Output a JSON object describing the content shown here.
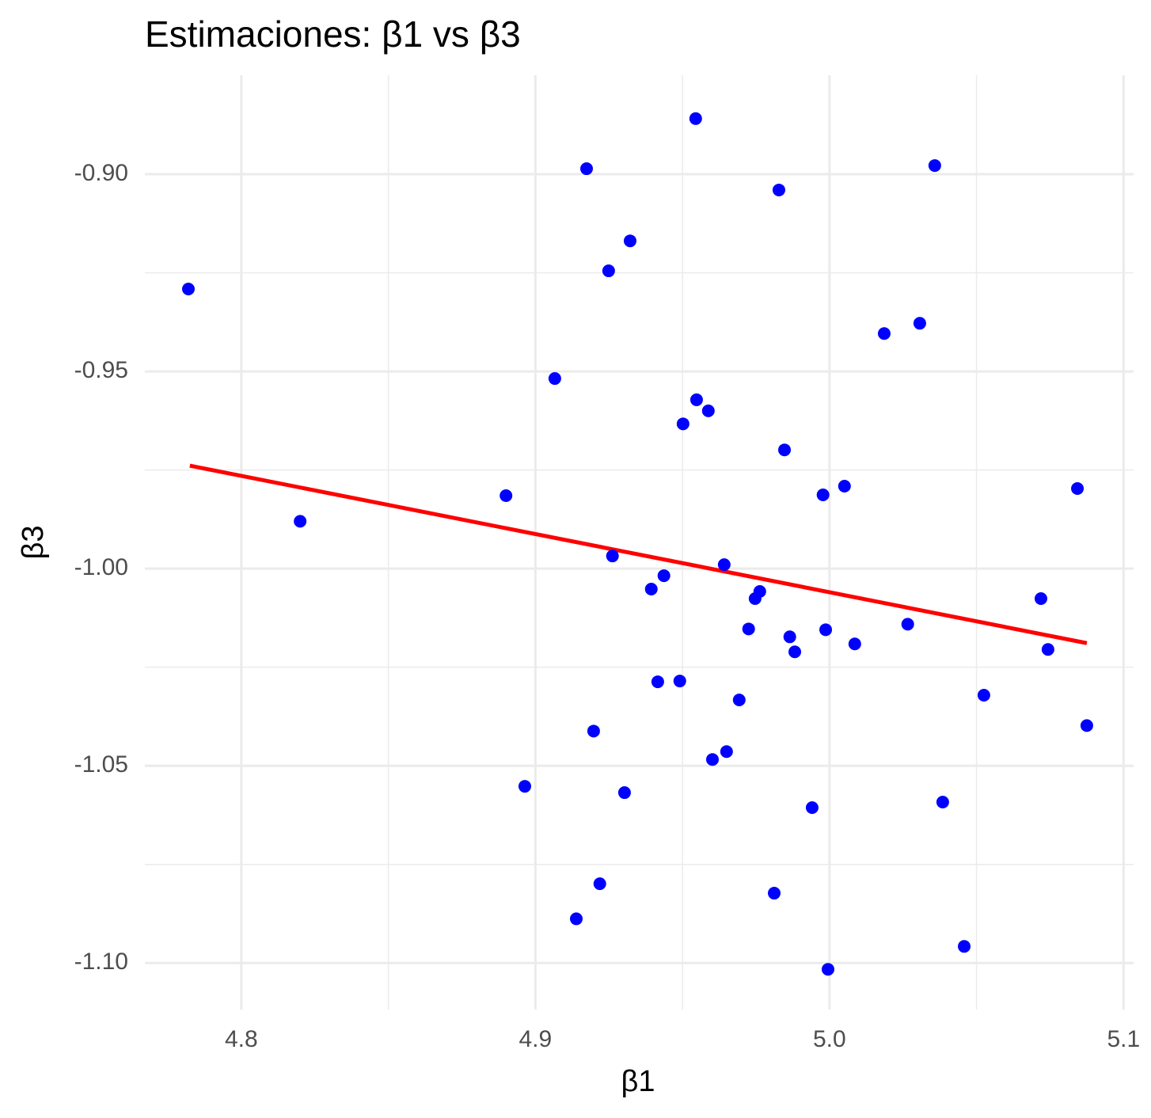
{
  "chart_data": {
    "type": "scatter",
    "title": "Estimaciones: β1 vs β3",
    "x_label": "β1",
    "y_label": "β3",
    "xlim": [
      4.7672,
      5.1034
    ],
    "ylim": [
      -1.1118,
      -0.8749
    ],
    "xticks": [
      4.8,
      4.9,
      {
        "value": 5.0,
        "label": "5.0"
      },
      5.1
    ],
    "yticks": [
      {
        "value": -0.9,
        "label": "-0.90"
      },
      {
        "value": -0.95,
        "label": "-0.95"
      },
      {
        "value": -1.0,
        "label": "-1.00"
      },
      {
        "value": -1.05,
        "label": "-1.05"
      },
      {
        "value": -1.1,
        "label": "-1.10"
      }
    ],
    "x_minor_ticks": [
      4.85,
      4.95,
      5.05
    ],
    "y_minor_ticks": [
      -0.925,
      -0.975,
      -1.025,
      -1.075
    ],
    "grid": true,
    "series": [
      {
        "color": "#0000ff",
        "x": [
          4.782,
          4.82,
          4.89,
          4.8964,
          4.9066,
          4.9139,
          4.9174,
          4.9198,
          4.9219,
          4.9249,
          4.9262,
          4.9303,
          4.9322,
          4.9394,
          4.9416,
          4.9437,
          4.9491,
          4.9502,
          4.9545,
          4.9548,
          4.9588,
          4.9602,
          4.9642,
          4.965,
          4.9693,
          4.9725,
          4.9747,
          4.9763,
          4.9812,
          4.9828,
          4.9847,
          4.9865,
          4.9882,
          4.9941,
          4.9978,
          4.9987,
          4.9995,
          5.0051,
          5.0086,
          5.0186,
          5.0266,
          5.0307,
          5.0358,
          5.0385,
          5.0458,
          5.0525,
          5.0719,
          5.0743,
          5.0843,
          5.0875
        ],
        "values": [
          -0.9291,
          -0.988,
          -0.9815,
          -1.0552,
          -0.9518,
          -1.0888,
          -0.8986,
          -1.0412,
          -1.0799,
          -0.9245,
          -0.9968,
          -1.0568,
          -0.9169,
          -1.0052,
          -1.0287,
          -1.0018,
          -1.0285,
          -0.9633,
          -0.8859,
          -0.9572,
          -0.96,
          -1.0484,
          -0.999,
          -1.0464,
          -1.0333,
          -1.0153,
          -1.0076,
          -1.0058,
          -1.0823,
          -0.904,
          -0.9699,
          -1.0173,
          -1.0211,
          -1.0606,
          -0.9813,
          -1.0155,
          -1.1016,
          -0.9791,
          -1.0191,
          -0.9404,
          -1.0141,
          -0.9378,
          -0.8978,
          -1.0592,
          -1.0958,
          -1.0321,
          -1.0076,
          -1.0205,
          -0.9797,
          -1.0398
        ]
      },
      {
        "color": "#ff0000",
        "x": [
          4.7825,
          5.0875
        ],
        "values": [
          -0.9739,
          -1.0189
        ]
      }
    ]
  }
}
